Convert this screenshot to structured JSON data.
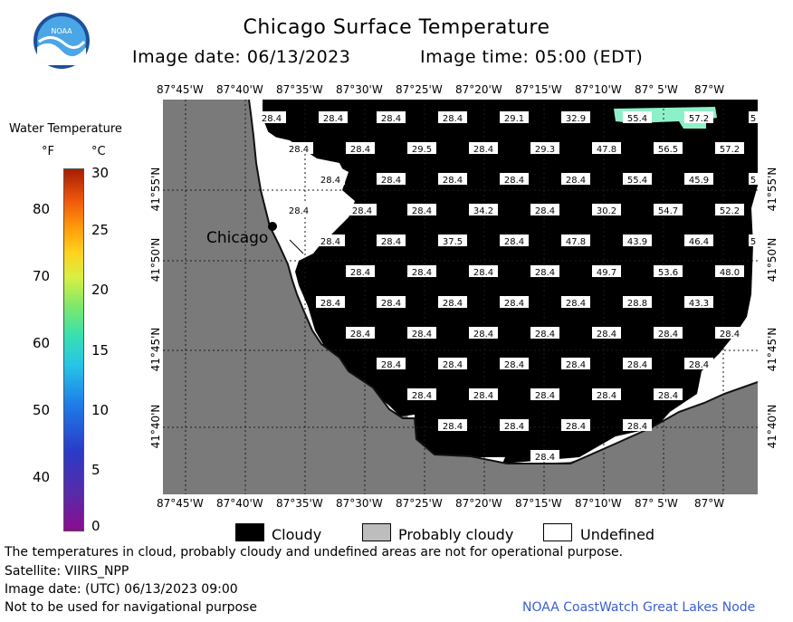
{
  "header": {
    "title": "Chicago Surface Temperature",
    "image_date": "Image date: 06/13/2023",
    "image_time": "Image time: 05:00 (EDT)",
    "logo_text": "NOAA"
  },
  "colorbar": {
    "title": "Water Temperature",
    "unit_f": "°F",
    "unit_c": "°C",
    "f_ticks": [
      "80",
      "70",
      "60",
      "50",
      "40"
    ],
    "c_ticks": [
      "30",
      "25",
      "20",
      "15",
      "10",
      "5",
      "0"
    ]
  },
  "map": {
    "lon_labels_top": [
      "87°45'W",
      "87°40'W",
      "87°35'W",
      "87°30'W",
      "87°25'W",
      "87°20'W",
      "87°15'W",
      "87°10'W",
      "87° 5'W",
      "87°W"
    ],
    "lon_labels_bottom": [
      "87°45'W",
      "87°40'W",
      "87°35'W",
      "87°30'W",
      "87°25'W",
      "87°20'W",
      "87°15'W",
      "87°10'W",
      "87° 5'W",
      "87°W"
    ],
    "lat_labels": [
      "41°55'N",
      "41°50'N",
      "41°45'N",
      "41°40'N"
    ],
    "city": "Chicago",
    "colors": {
      "land": "#7a7a7a",
      "cloud": "#000000",
      "undefined": "#ffffff",
      "warm_water": "#8ef0c8",
      "grid": "#1a1a1a"
    },
    "temperature_labels": [
      {
        "v": "28.4"
      },
      {
        "v": "28.4"
      },
      {
        "v": "28.4"
      },
      {
        "v": "28.4"
      },
      {
        "v": "29.1"
      },
      {
        "v": "32.9"
      },
      {
        "v": "55.4"
      },
      {
        "v": "57.2"
      },
      {
        "v": "5"
      },
      {
        "v": "28.4"
      },
      {
        "v": "28.4"
      },
      {
        "v": "29.5"
      },
      {
        "v": "28.4"
      },
      {
        "v": "29.3"
      },
      {
        "v": "47.8"
      },
      {
        "v": "56.5"
      },
      {
        "v": "57.2"
      },
      {
        "v": "28.4"
      },
      {
        "v": "28.4"
      },
      {
        "v": "28.4"
      },
      {
        "v": "28.4"
      },
      {
        "v": "28.4"
      },
      {
        "v": "55.4"
      },
      {
        "v": "45.9"
      },
      {
        "v": "5"
      },
      {
        "v": "28.4"
      },
      {
        "v": "28.4"
      },
      {
        "v": "28.4"
      },
      {
        "v": "34.2"
      },
      {
        "v": "28.4"
      },
      {
        "v": "30.2"
      },
      {
        "v": "54.7"
      },
      {
        "v": "52.2"
      },
      {
        "v": "28.4"
      },
      {
        "v": "28.4"
      },
      {
        "v": "37.5"
      },
      {
        "v": "28.4"
      },
      {
        "v": "47.8"
      },
      {
        "v": "43.9"
      },
      {
        "v": "46.4"
      },
      {
        "v": "5"
      },
      {
        "v": "28.4"
      },
      {
        "v": "28.4"
      },
      {
        "v": "28.4"
      },
      {
        "v": "28.4"
      },
      {
        "v": "49.7"
      },
      {
        "v": "53.6"
      },
      {
        "v": "48.0"
      },
      {
        "v": "28.4"
      },
      {
        "v": "28.4"
      },
      {
        "v": "28.4"
      },
      {
        "v": "28.4"
      },
      {
        "v": "28.4"
      },
      {
        "v": "28.8"
      },
      {
        "v": "43.3"
      },
      {
        "v": "28.4"
      },
      {
        "v": "28.4"
      },
      {
        "v": "28.4"
      },
      {
        "v": "28.4"
      },
      {
        "v": "28.4"
      },
      {
        "v": "28.4"
      },
      {
        "v": "28.4"
      },
      {
        "v": "28.4"
      },
      {
        "v": "28.4"
      },
      {
        "v": "28.4"
      },
      {
        "v": "28.4"
      },
      {
        "v": "28.4"
      },
      {
        "v": "28.4"
      },
      {
        "v": "28.4"
      },
      {
        "v": "28.4"
      },
      {
        "v": "28.4"
      },
      {
        "v": "28.4"
      },
      {
        "v": "28.4"
      },
      {
        "v": "28.4"
      },
      {
        "v": "28.4"
      },
      {
        "v": "28.4"
      },
      {
        "v": "28.4"
      },
      {
        "v": "28.4"
      }
    ]
  },
  "legend": {
    "cloudy": "Cloudy",
    "probably_cloudy": "Probably cloudy",
    "undefined": "Undefined",
    "cloudy_color": "#000000",
    "probably_cloudy_color": "#bdbdbd",
    "undefined_color": "#ffffff"
  },
  "footer": {
    "disclaimer": "The temperatures in cloud, probably cloudy and undefined areas are not for operational purpose.",
    "satellite": "Satellite: VIIRS_NPP",
    "utc_date": "Image date: (UTC) 06/13/2023  09:00",
    "nav_warning": "Not to be used for navigational purpose",
    "credit": "NOAA CoastWatch Great Lakes Node"
  }
}
